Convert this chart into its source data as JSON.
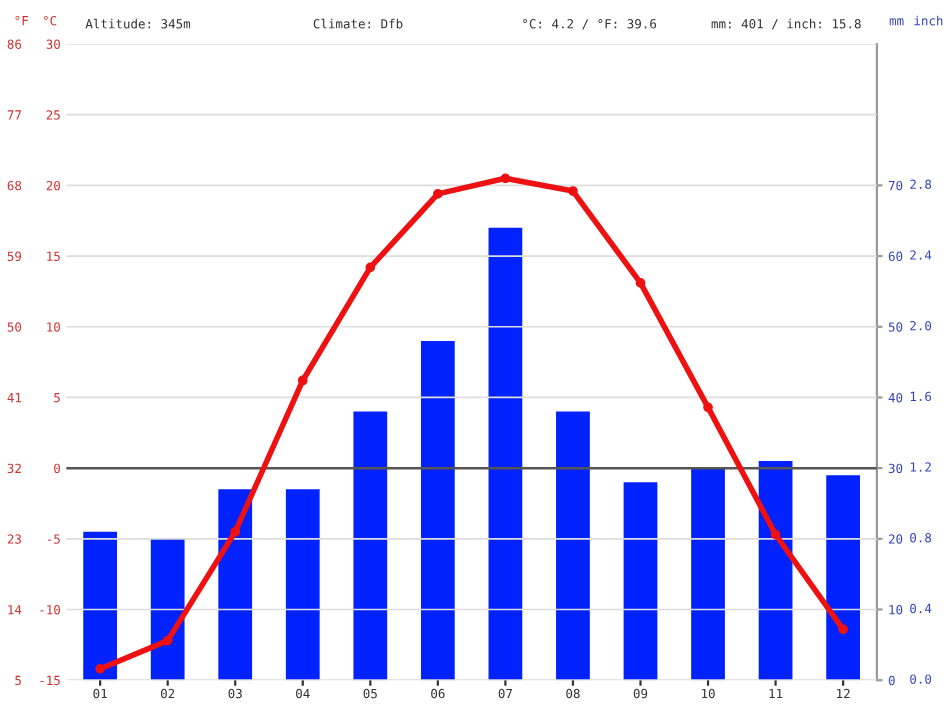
{
  "chart_data": {
    "type": "bar",
    "categories": [
      "01",
      "02",
      "03",
      "04",
      "05",
      "06",
      "07",
      "08",
      "09",
      "10",
      "11",
      "12"
    ],
    "series": [
      {
        "axis": "y2",
        "color": "#0022ff",
        "values": [
          21,
          20,
          27,
          27,
          38,
          48,
          64,
          38,
          28,
          30,
          31,
          29
        ]
      },
      {
        "type": "line",
        "axis": "y",
        "color": "#ee1111",
        "marker": "circle",
        "values": [
          -14.2,
          -12.2,
          -4.5,
          6.2,
          14.2,
          19.4,
          20.5,
          19.6,
          13.1,
          4.3,
          -4.7,
          -11.4
        ]
      }
    ],
    "ylabel": "°C",
    "y2label": "mm",
    "y3label": "°F",
    "ylim": [
      -15,
      30
    ],
    "yticks": [
      -15,
      -10,
      -5,
      0,
      5,
      10,
      15,
      20,
      25,
      30
    ],
    "y3lim": [
      5,
      86
    ],
    "y3ticks": [
      5,
      14,
      23,
      32,
      41,
      50,
      59,
      68,
      77,
      86
    ],
    "y2lim": [
      0,
      90
    ],
    "y2ticks": [
      0,
      10,
      20,
      30,
      40,
      50,
      60,
      70
    ],
    "grid": "y",
    "ref_lines": [
      {
        "axis": "y",
        "value": 0,
        "color": "#555555"
      }
    ],
    "annotations": [
      "Altitude: 345m",
      "Climate: Dfb",
      "°C: 4.2 / °F: 39.6",
      "mm: 401 / inch: 15.8",
      "inch",
      "0.0",
      "0.4",
      "0.8",
      "1.2",
      "1.6",
      "2.0",
      "2.4",
      "2.8"
    ]
  }
}
